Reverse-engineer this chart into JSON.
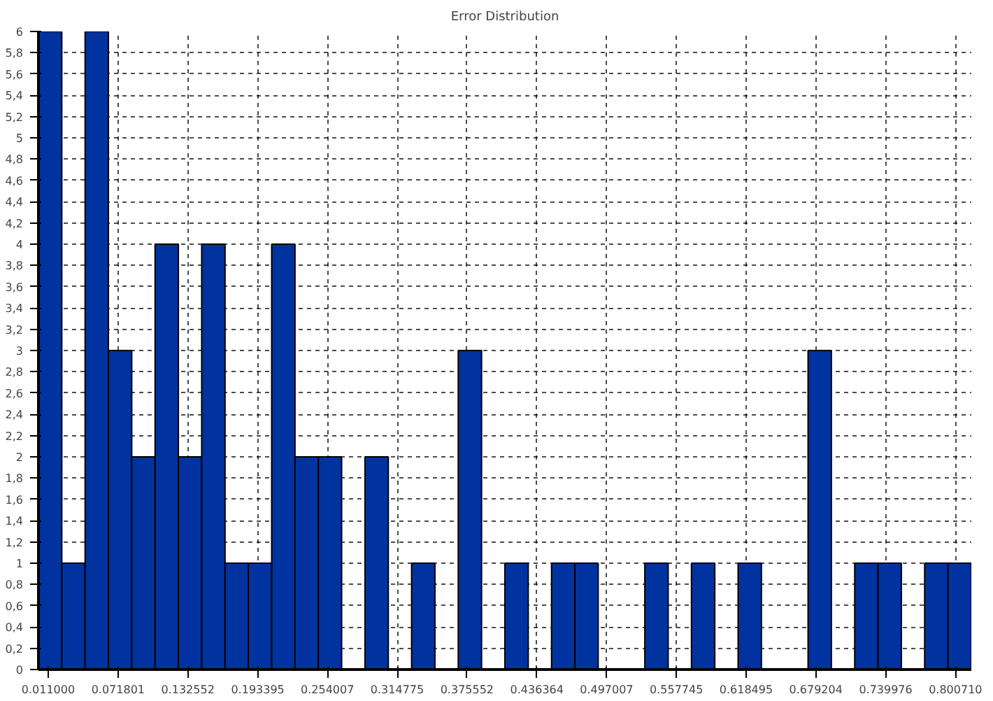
{
  "chart_data": {
    "type": "histogram",
    "title": "Error Distribution",
    "bins": [
      0.0025,
      0.0228,
      0.0431,
      0.0634,
      0.0837,
      0.104,
      0.1243,
      0.1446,
      0.1649,
      0.1852,
      0.2055,
      0.2258,
      0.2461,
      0.2664,
      0.2867,
      0.307,
      0.3273,
      0.3476,
      0.3679,
      0.3882,
      0.4085,
      0.4288,
      0.4491,
      0.4694,
      0.4897,
      0.51,
      0.5303,
      0.5506,
      0.5709,
      0.5912,
      0.6115,
      0.6318,
      0.6521,
      0.6724,
      0.6927,
      0.713,
      0.7333,
      0.7536,
      0.7739,
      0.7942,
      0.8145
    ],
    "values": [
      6,
      1,
      6,
      3,
      2,
      4,
      2,
      4,
      1,
      1,
      4,
      2,
      2,
      0,
      2,
      0,
      1,
      0,
      3,
      0,
      1,
      0,
      1,
      1,
      0,
      0,
      1,
      0,
      1,
      0,
      1,
      0,
      0,
      3,
      0,
      1,
      1,
      0,
      1,
      1
    ],
    "color": "#0033a0",
    "xlim": [
      0.0025,
      0.8145
    ],
    "xticks": [
      {
        "value": 0.011,
        "label": "0.011000"
      },
      {
        "value": 0.071801,
        "label": "0.071801"
      },
      {
        "value": 0.132552,
        "label": "0.132552"
      },
      {
        "value": 0.193395,
        "label": "0.193395"
      },
      {
        "value": 0.254007,
        "label": "0.254007"
      },
      {
        "value": 0.314775,
        "label": "0.314775"
      },
      {
        "value": 0.375552,
        "label": "0.375552"
      },
      {
        "value": 0.436364,
        "label": "0.436364"
      },
      {
        "value": 0.497007,
        "label": "0.497007"
      },
      {
        "value": 0.557745,
        "label": "0.557745"
      },
      {
        "value": 0.618495,
        "label": "0.618495"
      },
      {
        "value": 0.679204,
        "label": "0.679204"
      },
      {
        "value": 0.739976,
        "label": "0.739976"
      },
      {
        "value": 0.80071,
        "label": "0.800710"
      }
    ],
    "ylim": [
      0,
      6
    ],
    "yticks": [
      0,
      {
        "value": 0.2,
        "label": "0,2"
      },
      {
        "value": 0.4,
        "label": "0,4"
      },
      {
        "value": 0.6,
        "label": "0,6"
      },
      {
        "value": 0.8,
        "label": "0,8"
      },
      1,
      {
        "value": 1.2,
        "label": "1,2"
      },
      {
        "value": 1.4,
        "label": "1,4"
      },
      {
        "value": 1.6,
        "label": "1,6"
      },
      {
        "value": 1.8,
        "label": "1,8"
      },
      2,
      {
        "value": 2.2,
        "label": "2,2"
      },
      {
        "value": 2.4,
        "label": "2,4"
      },
      {
        "value": 2.6,
        "label": "2,6"
      },
      {
        "value": 2.8,
        "label": "2,8"
      },
      3,
      {
        "value": 3.2,
        "label": "3,2"
      },
      {
        "value": 3.4,
        "label": "3,4"
      },
      {
        "value": 3.6,
        "label": "3,6"
      },
      {
        "value": 3.8,
        "label": "3,8"
      },
      4,
      {
        "value": 4.2,
        "label": "4,2"
      },
      {
        "value": 4.4,
        "label": "4,4"
      },
      {
        "value": 4.6,
        "label": "4,6"
      },
      {
        "value": 4.8,
        "label": "4,8"
      },
      5,
      {
        "value": 5.2,
        "label": "5,2"
      },
      {
        "value": 5.4,
        "label": "5,4"
      },
      {
        "value": 5.6,
        "label": "5,6"
      },
      {
        "value": 5.8,
        "label": "5,8"
      },
      6
    ],
    "grid": true,
    "line_style": "dashed"
  }
}
